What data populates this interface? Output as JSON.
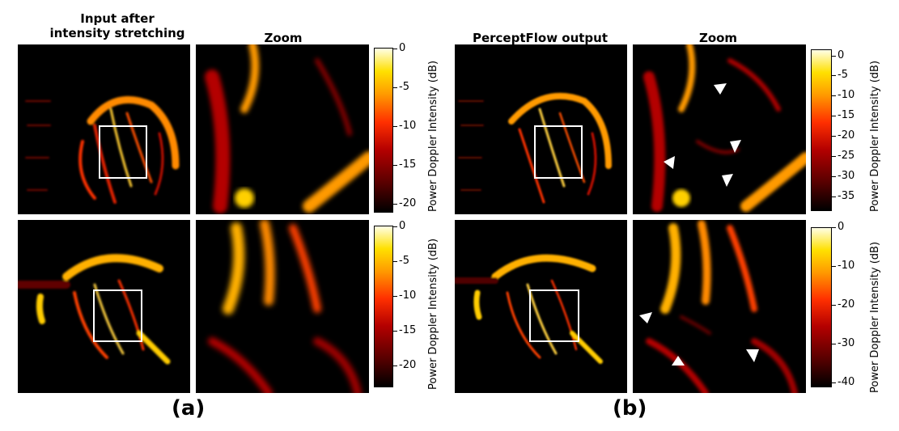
{
  "panel_a": {
    "title_input": "Input after\nintensity stretching",
    "title_zoom": "Zoom",
    "caption": "(a)",
    "colorbar_top": {
      "label": "Power Doppler Intensity (dB)",
      "ticks": [
        "0",
        "-5",
        "-10",
        "-15",
        "-20"
      ]
    },
    "colorbar_bottom": {
      "label": "Power Doppler Intensity (dB)",
      "ticks": [
        "0",
        "-5",
        "-10",
        "-15",
        "-20"
      ]
    }
  },
  "panel_b": {
    "title_output": "PerceptFlow output",
    "title_zoom": "Zoom",
    "caption": "(b)",
    "colorbar_top": {
      "label": "Power Doppler Intensity (dB)",
      "ticks": [
        "0",
        "-5",
        "-10",
        "-15",
        "-20",
        "-25",
        "-30",
        "-35"
      ]
    },
    "colorbar_bottom": {
      "label": "Power Doppler Intensity (dB)",
      "ticks": [
        "0",
        "-10",
        "-20",
        "-30",
        "-40"
      ]
    }
  },
  "colormap": [
    "#000000",
    "#5a0000",
    "#b40000",
    "#ff3000",
    "#ff9a00",
    "#ffe000",
    "#ffffe6"
  ]
}
